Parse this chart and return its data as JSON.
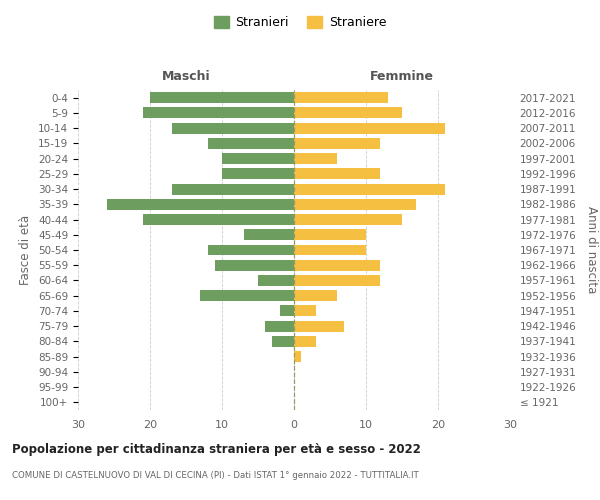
{
  "age_groups": [
    "100+",
    "95-99",
    "90-94",
    "85-89",
    "80-84",
    "75-79",
    "70-74",
    "65-69",
    "60-64",
    "55-59",
    "50-54",
    "45-49",
    "40-44",
    "35-39",
    "30-34",
    "25-29",
    "20-24",
    "15-19",
    "10-14",
    "5-9",
    "0-4"
  ],
  "birth_years": [
    "≤ 1921",
    "1922-1926",
    "1927-1931",
    "1932-1936",
    "1937-1941",
    "1942-1946",
    "1947-1951",
    "1952-1956",
    "1957-1961",
    "1962-1966",
    "1967-1971",
    "1972-1976",
    "1977-1981",
    "1982-1986",
    "1987-1991",
    "1992-1996",
    "1997-2001",
    "2002-2006",
    "2007-2011",
    "2012-2016",
    "2017-2021"
  ],
  "males": [
    0,
    0,
    0,
    0,
    3,
    4,
    2,
    13,
    5,
    11,
    12,
    7,
    21,
    26,
    17,
    10,
    10,
    12,
    17,
    21,
    20
  ],
  "females": [
    0,
    0,
    0,
    1,
    3,
    7,
    3,
    6,
    12,
    12,
    10,
    10,
    15,
    17,
    21,
    12,
    6,
    12,
    21,
    15,
    13
  ],
  "male_color": "#6e9e5f",
  "female_color": "#f5bf42",
  "male_label": "Stranieri",
  "female_label": "Straniere",
  "title": "Popolazione per cittadinanza straniera per età e sesso - 2022",
  "subtitle": "COMUNE DI CASTELNUOVO DI VAL DI CECINA (PI) - Dati ISTAT 1° gennaio 2022 - TUTTITALIA.IT",
  "xlabel_left": "Maschi",
  "xlabel_right": "Femmine",
  "ylabel_left": "Fasce di età",
  "ylabel_right": "Anni di nascita",
  "xlim": 30,
  "bg_color": "#ffffff",
  "grid_color": "#cccccc"
}
